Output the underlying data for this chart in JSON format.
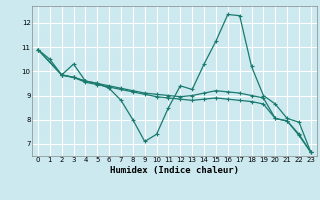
{
  "xlabel": "Humidex (Indice chaleur)",
  "background_color": "#cce9f0",
  "grid_color": "#ffffff",
  "line_color": "#1a7a6e",
  "line1_x": [
    0,
    1,
    2,
    3,
    4
  ],
  "line1_y": [
    10.9,
    10.5,
    9.85,
    9.75,
    9.6
  ],
  "line2_x": [
    2,
    3,
    4,
    5,
    6,
    7,
    8,
    9,
    10,
    11,
    12,
    13,
    14,
    15,
    16,
    17,
    18,
    19,
    20,
    21,
    22,
    23
  ],
  "line2_y": [
    9.85,
    10.3,
    9.6,
    9.5,
    9.3,
    8.8,
    8.0,
    7.1,
    7.4,
    8.5,
    9.4,
    9.25,
    10.3,
    11.25,
    12.35,
    12.3,
    10.2,
    9.0,
    8.65,
    8.05,
    7.9,
    6.65
  ],
  "line3_x": [
    0,
    2,
    3,
    4,
    5,
    6,
    7,
    8,
    9,
    10,
    11,
    12,
    13,
    14,
    15,
    16,
    17,
    18,
    19,
    20,
    21,
    22,
    23
  ],
  "line3_y": [
    10.9,
    9.85,
    9.75,
    9.55,
    9.45,
    9.35,
    9.25,
    9.15,
    9.05,
    8.95,
    8.9,
    8.85,
    8.8,
    8.85,
    8.9,
    8.85,
    8.8,
    8.75,
    8.65,
    8.05,
    7.95,
    7.35,
    6.65
  ],
  "line4_x": [
    0,
    2,
    3,
    4,
    5,
    6,
    7,
    8,
    9,
    10,
    11,
    12,
    13,
    14,
    15,
    16,
    17,
    18,
    19,
    20,
    21,
    22,
    23
  ],
  "line4_y": [
    10.9,
    9.85,
    9.75,
    9.6,
    9.5,
    9.4,
    9.3,
    9.2,
    9.1,
    9.05,
    9.0,
    8.95,
    9.0,
    9.1,
    9.2,
    9.15,
    9.1,
    9.0,
    8.9,
    8.05,
    7.95,
    7.4,
    6.65
  ],
  "ylim": [
    6.5,
    12.7
  ],
  "xlim": [
    -0.5,
    23.5
  ],
  "yticks": [
    7,
    8,
    9,
    10,
    11,
    12
  ],
  "xticks": [
    0,
    1,
    2,
    3,
    4,
    5,
    6,
    7,
    8,
    9,
    10,
    11,
    12,
    13,
    14,
    15,
    16,
    17,
    18,
    19,
    20,
    21,
    22,
    23
  ]
}
